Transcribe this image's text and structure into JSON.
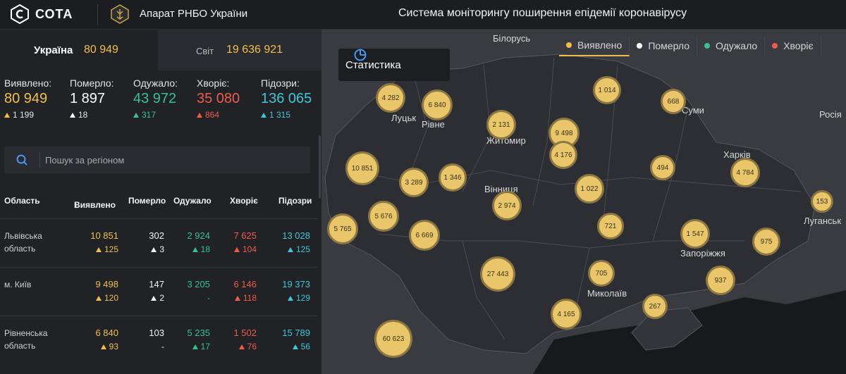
{
  "header": {
    "brand": "СОТА",
    "org": "Апарат РНБО України",
    "title": "Система моніторингу поширення епідемії коронавірусу"
  },
  "tabs": {
    "ukraine": {
      "label": "Україна",
      "value": "80 949"
    },
    "world": {
      "label": "Світ",
      "value": "19 636 921"
    }
  },
  "stats": [
    {
      "label": "Виявлено:",
      "value": "80 949",
      "delta": "1 199",
      "color": "#f0c04c"
    },
    {
      "label": "Померло:",
      "value": "1 897",
      "delta": "18",
      "color": "#ffffff"
    },
    {
      "label": "Одужало:",
      "value": "43 972",
      "delta": "317",
      "color": "#34c38f"
    },
    {
      "label": "Хворіє:",
      "value": "35 080",
      "delta": "864",
      "color": "#f05c4c"
    },
    {
      "label": "Підозри:",
      "value": "136 065",
      "delta": "1 315",
      "color": "#3fc7d6"
    }
  ],
  "search": {
    "placeholder": "Пошук за регіоном"
  },
  "table": {
    "headers": [
      "Область",
      "Виявлено",
      "Померло",
      "Одужало",
      "Хворіє",
      "Підозри"
    ],
    "rows": [
      {
        "name": "Львівська область",
        "v": [
          "10 851",
          "302",
          "2 924",
          "7 625",
          "13 028"
        ],
        "d": [
          "125",
          "3",
          "18",
          "104",
          "125"
        ]
      },
      {
        "name": "м. Київ",
        "v": [
          "9 498",
          "147",
          "3 205",
          "6 146",
          "19 373"
        ],
        "d": [
          "120",
          "2",
          "-",
          "118",
          "129"
        ]
      },
      {
        "name": "Рівненська область",
        "v": [
          "6 840",
          "103",
          "5 235",
          "1 502",
          "15 789"
        ],
        "d": [
          "93",
          "-",
          "17",
          "76",
          "56"
        ]
      }
    ]
  },
  "map": {
    "stat_button": "Статистика",
    "legend": [
      "Виявлено",
      "Померло",
      "Одужало",
      "Хворіє"
    ],
    "legend_colors": [
      "#f0c04c",
      "#ffffff",
      "#34c38f",
      "#f05c4c"
    ],
    "cities": [
      "Білорусь",
      "Луцьк",
      "Рівне",
      "Житомир",
      "Суми",
      "Росія",
      "Харків",
      "Вінниця",
      "Луганськ",
      "Запоріжжя",
      "Миколаїв"
    ],
    "bubbles": [
      "4 282",
      "6 840",
      "1 014",
      "668",
      "2 131",
      "9 498",
      "4 176",
      "10 851",
      "3 289",
      "1 346",
      "494",
      "4 784",
      "1 022",
      "2 974",
      "153",
      "5 765",
      "5 676",
      "6 669",
      "721",
      "1 547",
      "975",
      "27 443",
      "705",
      "937",
      "4 165",
      "267",
      "60 623"
    ]
  }
}
